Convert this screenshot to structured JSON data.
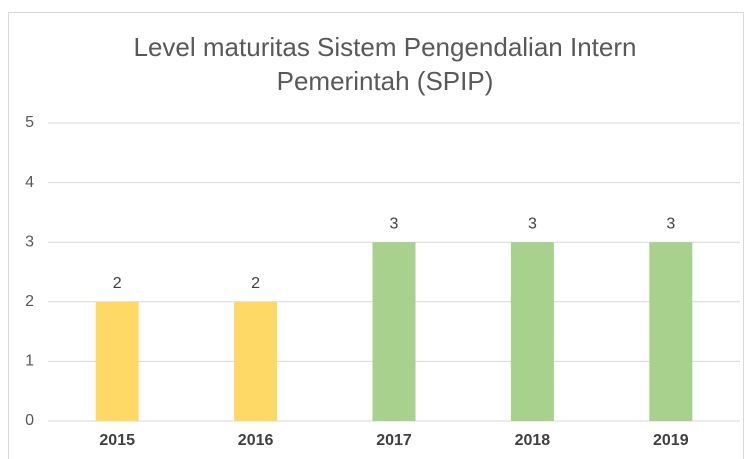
{
  "chart_data": {
    "type": "bar",
    "title": "Level maturitas Sistem Pengendalian Intern Pemerintah (SPIP)",
    "categories": [
      "2015",
      "2016",
      "2017",
      "2018",
      "2019"
    ],
    "values": [
      2,
      2,
      3,
      3,
      3
    ],
    "colors": [
      "#FFD966",
      "#FFD966",
      "#A9D18E",
      "#A9D18E",
      "#A9D18E"
    ],
    "ylim": [
      0,
      5
    ],
    "yticks": [
      0,
      1,
      2,
      3,
      4,
      5
    ],
    "grid": true,
    "data_labels": true
  }
}
